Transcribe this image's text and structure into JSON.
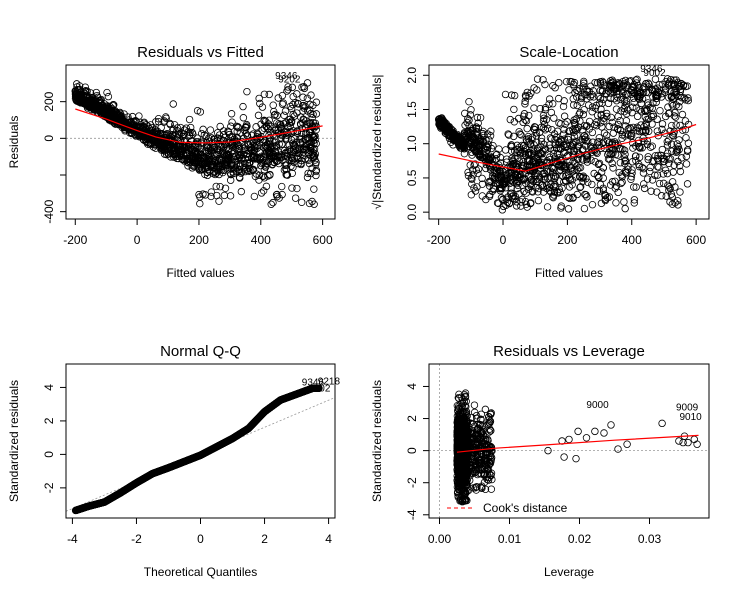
{
  "colors": {
    "points": "#000000",
    "smooth": "#ff0000",
    "reference": "#999999"
  },
  "chart_data": [
    {
      "type": "scatter",
      "title": "Residuals vs Fitted",
      "xlabel": "Fitted values",
      "ylabel": "Residuals",
      "xlim": [
        -230,
        640
      ],
      "ylim": [
        -440,
        400
      ],
      "xticks": [
        -200,
        0,
        200,
        400,
        600
      ],
      "xtick_labels": [
        "-200",
        "0",
        "200",
        "400",
        "600"
      ],
      "yticks": [
        -400,
        -200,
        0,
        200
      ],
      "ytick_labels": [
        "-400",
        "",
        "0",
        "200"
      ],
      "reference_line": 0,
      "smooth": {
        "x": [
          -200,
          -100,
          0,
          60,
          140,
          220,
          300,
          400,
          500,
          600
        ],
        "y": [
          160,
          105,
          42,
          8,
          -22,
          -25,
          -20,
          5,
          35,
          68
        ]
      },
      "labeled_points": [
        {
          "label": "9346",
          "x": 440,
          "y": 340
        },
        {
          "label": "9202",
          "x": 450,
          "y": 322
        }
      ]
    },
    {
      "type": "scatter",
      "title": "Scale-Location",
      "xlabel": "Fitted values",
      "ylabel": "√|Standardized residuals|",
      "xlim": [
        -230,
        640
      ],
      "ylim": [
        -0.1,
        2.15
      ],
      "xticks": [
        -200,
        0,
        200,
        400,
        600
      ],
      "xtick_labels": [
        "-200",
        "0",
        "200",
        "400",
        "600"
      ],
      "yticks": [
        0,
        0.5,
        1,
        1.5,
        2
      ],
      "ytick_labels": [
        "0.0",
        "0.5",
        "1.0",
        "1.5",
        "2.0"
      ],
      "smooth": {
        "x": [
          -200,
          -100,
          0,
          70,
          150,
          250,
          350,
          450,
          550,
          600
        ],
        "y": [
          0.85,
          0.75,
          0.66,
          0.6,
          0.72,
          0.86,
          0.98,
          1.08,
          1.2,
          1.28
        ]
      },
      "labeled_points": [
        {
          "label": "9346",
          "x": 420,
          "y": 2.09
        },
        {
          "label": "9002",
          "x": 430,
          "y": 2.03
        }
      ]
    },
    {
      "type": "scatter",
      "title": "Normal Q-Q",
      "xlabel": "Theoretical Quantiles",
      "ylabel": "Standardized residuals",
      "xlim": [
        -4.2,
        4.2
      ],
      "ylim": [
        -3.8,
        5.4
      ],
      "xticks": [
        -4,
        -2,
        0,
        2,
        4
      ],
      "xtick_labels": [
        "-4",
        "-2",
        "0",
        "2",
        "4"
      ],
      "yticks": [
        -2,
        0,
        2,
        4
      ],
      "ytick_labels": [
        "-2",
        "0",
        "2",
        "4"
      ],
      "qq_line": {
        "x": [
          -4.2,
          4.2
        ],
        "y": [
          -3.4,
          3.4
        ]
      },
      "qq_curve": {
        "x": [
          -3.9,
          -3.5,
          -3.0,
          -2.5,
          -2.0,
          -1.5,
          -1.0,
          0.0,
          1.0,
          1.5,
          2.0,
          2.5,
          3.0,
          3.5
        ],
        "y": [
          -3.35,
          -3.1,
          -2.85,
          -2.3,
          -1.7,
          -1.15,
          -0.8,
          -0.05,
          0.95,
          1.55,
          2.55,
          3.25,
          3.6,
          3.95
        ]
      },
      "labeled_points": [
        {
          "label": "9346",
          "x": 3.1,
          "y": 4.3
        },
        {
          "label": "9002",
          "x": 3.3,
          "y": 3.95
        },
        {
          "label": "9218",
          "x": 3.6,
          "y": 4.35
        }
      ]
    },
    {
      "type": "scatter",
      "title": "Residuals vs Leverage",
      "xlabel": "Leverage",
      "ylabel": "Standardized residuals",
      "xlim": [
        -0.0015,
        0.0385
      ],
      "ylim": [
        -4.2,
        5.4
      ],
      "xticks": [
        0,
        0.01,
        0.02,
        0.03
      ],
      "xtick_labels": [
        "0.00",
        "0.01",
        "0.02",
        "0.03"
      ],
      "yticks": [
        -4,
        -2,
        0,
        2,
        4
      ],
      "ytick_labels": [
        "-4",
        "-2",
        "0",
        "2",
        "4"
      ],
      "smooth": {
        "x": [
          0.0025,
          0.008,
          0.015,
          0.025,
          0.037
        ],
        "y": [
          -0.1,
          0.15,
          0.35,
          0.65,
          0.95
        ]
      },
      "legend": {
        "label": "Cook's distance",
        "placement": "bottom-left"
      },
      "labeled_points": [
        {
          "label": "9000",
          "x": 0.0207,
          "y": 2.85
        },
        {
          "label": "9009",
          "x": 0.0335,
          "y": 2.7
        },
        {
          "label": "9010",
          "x": 0.034,
          "y": 2.1
        }
      ],
      "sparse_points": [
        [
          0.0155,
          0.0
        ],
        [
          0.0175,
          0.6
        ],
        [
          0.0178,
          -0.4
        ],
        [
          0.0185,
          0.7
        ],
        [
          0.0195,
          -0.5
        ],
        [
          0.0198,
          1.2
        ],
        [
          0.021,
          0.8
        ],
        [
          0.0222,
          1.2
        ],
        [
          0.0235,
          1.1
        ],
        [
          0.0245,
          1.6
        ],
        [
          0.0255,
          0.1
        ],
        [
          0.0268,
          0.4
        ],
        [
          0.0318,
          1.7
        ],
        [
          0.0342,
          0.6
        ],
        [
          0.035,
          0.9
        ],
        [
          0.0355,
          0.5
        ],
        [
          0.0364,
          0.7
        ],
        [
          0.0368,
          0.4
        ],
        [
          0.0348,
          0.5
        ]
      ]
    }
  ]
}
